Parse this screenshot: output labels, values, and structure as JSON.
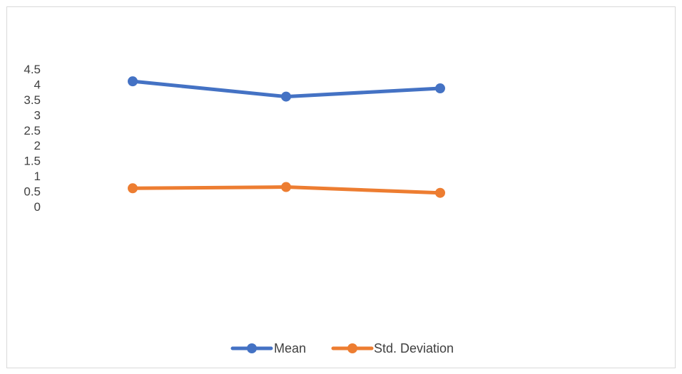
{
  "chart_data": {
    "type": "line",
    "categories": [
      "",
      "",
      ""
    ],
    "series": [
      {
        "name": "Mean",
        "values": [
          4.1,
          3.6,
          3.87
        ]
      },
      {
        "name": "Std. Deviation",
        "values": [
          0.6,
          0.64,
          0.45
        ]
      }
    ],
    "yticks": [
      "0",
      "0.5",
      "1",
      "1.5",
      "2",
      "2.5",
      "3",
      "3.5",
      "4",
      "4.5"
    ],
    "ylim": [
      0,
      4.5
    ],
    "grid": false,
    "legend_position": "bottom",
    "colors": {
      "Mean": "#4472C4",
      "Std. Deviation": "#ED7D31"
    }
  }
}
